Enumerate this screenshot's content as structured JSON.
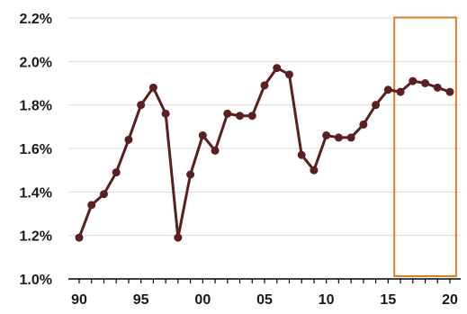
{
  "chart_data": {
    "type": "line",
    "title": "",
    "xlabel": "",
    "ylabel": "",
    "x": [
      1990,
      1991,
      1992,
      1993,
      1994,
      1995,
      1996,
      1997,
      1998,
      1999,
      2000,
      2001,
      2002,
      2003,
      2004,
      2005,
      2006,
      2007,
      2008,
      2009,
      2010,
      2011,
      2012,
      2013,
      2014,
      2015,
      2016,
      2017,
      2018,
      2019,
      2020
    ],
    "series": [
      {
        "values": [
          1.19,
          1.34,
          1.39,
          1.49,
          1.64,
          1.8,
          1.88,
          1.76,
          1.19,
          1.48,
          1.66,
          1.59,
          1.76,
          1.75,
          1.75,
          1.89,
          1.97,
          1.94,
          1.57,
          1.5,
          1.66,
          1.65,
          1.65,
          1.71,
          1.8,
          1.87,
          1.86,
          1.91,
          1.9,
          1.88,
          1.86
        ]
      }
    ],
    "ylim": [
      1.0,
      2.2
    ],
    "xlim": [
      1990,
      2020
    ],
    "yticks": [
      {
        "value": 2.2,
        "label": "2.2%"
      },
      {
        "value": 2.0,
        "label": "2.0%"
      },
      {
        "value": 1.8,
        "label": "1.8%"
      },
      {
        "value": 1.6,
        "label": "1.6%"
      },
      {
        "value": 1.4,
        "label": "1.4%"
      },
      {
        "value": 1.2,
        "label": "1.2%"
      },
      {
        "value": 1.0,
        "label": "1.0%"
      }
    ],
    "xticks": [
      {
        "value": 1990,
        "label": "90"
      },
      {
        "value": 1995,
        "label": "95"
      },
      {
        "value": 2000,
        "label": "00"
      },
      {
        "value": 2005,
        "label": "05"
      },
      {
        "value": 2010,
        "label": "10"
      },
      {
        "value": 2015,
        "label": "15"
      },
      {
        "value": 2020,
        "label": "20"
      }
    ],
    "grid": "horizontal",
    "highlight_range": [
      2015.5,
      2020.5
    ],
    "colors": {
      "line": "#5a1f1f",
      "marker": "#5a1f1f",
      "grid": "#d9d9d9",
      "axis": "#000000",
      "highlight": "#e07b27"
    }
  }
}
